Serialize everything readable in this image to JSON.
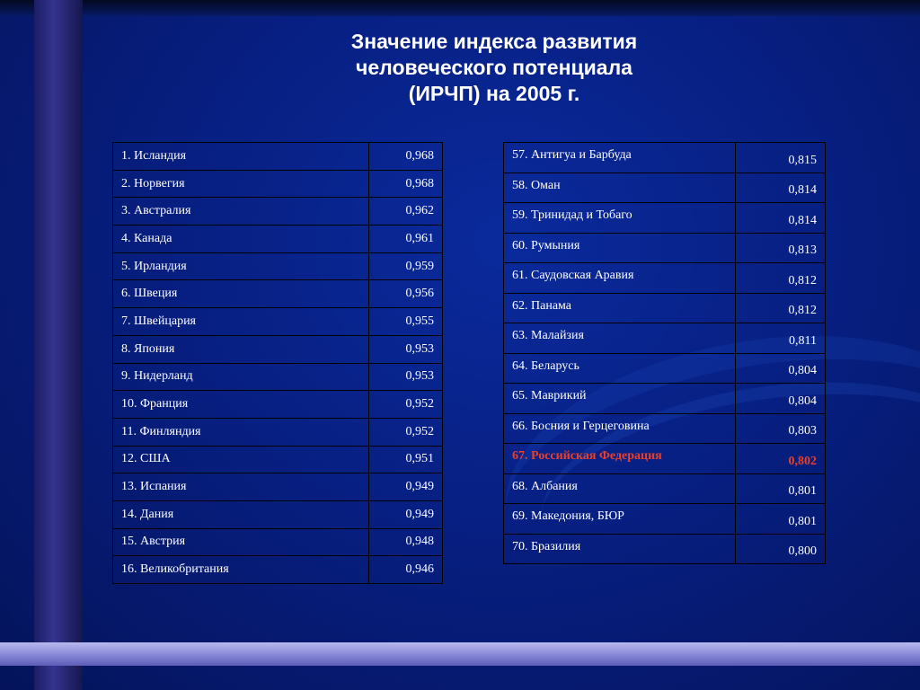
{
  "title": {
    "line1": "Значение индекса развития",
    "line2": "человеческого потенциала",
    "line3": "(ИРЧП) на 2005 г."
  },
  "colors": {
    "background": "#071f82",
    "highlight": "#e8402a",
    "text": "#ffffff"
  },
  "table_left": [
    {
      "country": "1. Исландия",
      "value": "0,968"
    },
    {
      "country": "2. Норвегия",
      "value": "0,968"
    },
    {
      "country": "3. Австралия",
      "value": "0,962"
    },
    {
      "country": "4. Канада",
      "value": "0,961"
    },
    {
      "country": "5. Ирландия",
      "value": "0,959"
    },
    {
      "country": "6. Швеция",
      "value": "0,956"
    },
    {
      "country": "7. Швейцария",
      "value": "0,955"
    },
    {
      "country": "8. Япония",
      "value": "0,953"
    },
    {
      "country": "9. Нидерланд",
      "value": "0,953"
    },
    {
      "country": "10. Франция",
      "value": "0,952"
    },
    {
      "country": "11. Финляндия",
      "value": "0,952"
    },
    {
      "country": "12. США",
      "value": "0,951"
    },
    {
      "country": "13. Испания",
      "value": "0,949"
    },
    {
      "country": "14. Дания",
      "value": "0,949"
    },
    {
      "country": "15. Австрия",
      "value": "0,948"
    },
    {
      "country": "16. Великобритания",
      "value": "0,946"
    }
  ],
  "table_right": [
    {
      "country": "57. Антигуа и Барбуда",
      "value": "0,815"
    },
    {
      "country": "58. Оман",
      "value": "0,814"
    },
    {
      "country": "59. Тринидад и Тобаго",
      "value": "0,814"
    },
    {
      "country": "60. Румыния",
      "value": "0,813"
    },
    {
      "country": "61. Саудовская Аравия",
      "value": "0,812"
    },
    {
      "country": "62. Панама",
      "value": "0,812"
    },
    {
      "country": "63. Малайзия",
      "value": "0,811"
    },
    {
      "country": "64. Беларусь",
      "value": "0,804"
    },
    {
      "country": "65. Маврикий",
      "value": "0,804"
    },
    {
      "country": "66. Босния и Герцеговина",
      "value": "0,803"
    },
    {
      "country": "67. Российская Федерация",
      "value": "0,802",
      "highlight": true
    },
    {
      "country": "68. Албания",
      "value": "0,801"
    },
    {
      "country": "69. Македония, БЮР",
      "value": "0,801"
    },
    {
      "country": "70. Бразилия",
      "value": "0,800"
    }
  ]
}
